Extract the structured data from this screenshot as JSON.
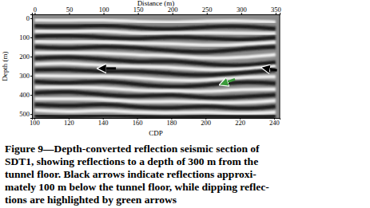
{
  "chart_data": {
    "type": "seismic",
    "xlabel": "Distance (m)",
    "ylabel": "Depth (m)",
    "x2label": "CDP",
    "xlim": [
      -4,
      356
    ],
    "xticks": [
      0,
      50,
      100,
      150,
      200,
      250,
      300,
      350
    ],
    "x2lim": [
      98.6,
      243.3
    ],
    "x2ticks": [
      100,
      120,
      140,
      160,
      180,
      200,
      220,
      240
    ],
    "ylim": [
      -20,
      520
    ],
    "yticks": [
      0,
      100,
      200,
      300,
      400,
      500
    ],
    "x": [
      0,
      50,
      100,
      150,
      200,
      250,
      300,
      350
    ],
    "series": [
      {
        "color": "#f2f2f2",
        "values": [
          10,
          12,
          8,
          18,
          22,
          15,
          12,
          20
        ]
      },
      {
        "color": "#1a1a1a",
        "values": [
          40,
          45,
          35,
          50,
          60,
          45,
          40,
          55
        ]
      },
      {
        "color": "#f2f2f2",
        "values": [
          68,
          70,
          65,
          80,
          78,
          75,
          78,
          80
        ]
      },
      {
        "color": "#1a1a1a",
        "values": [
          95,
          90,
          100,
          110,
          95,
          105,
          115,
          100
        ]
      },
      {
        "color": "#f2f2f2",
        "values": [
          122,
          125,
          122,
          132,
          132,
          142,
          138,
          125
        ]
      },
      {
        "color": "#1a1a1a",
        "values": [
          150,
          160,
          145,
          155,
          170,
          180,
          160,
          150
        ]
      },
      {
        "color": "#f2f2f2",
        "values": [
          180,
          180,
          180,
          192,
          195,
          210,
          205,
          190
        ]
      },
      {
        "color": "#1a1a1a",
        "values": [
          210,
          200,
          215,
          230,
          220,
          240,
          250,
          230
        ]
      },
      {
        "color": "#f2f2f2",
        "values": [
          240,
          232,
          248,
          252,
          255,
          270,
          268,
          250
        ]
      },
      {
        "color": "#1a1a1a",
        "values": [
          270,
          265,
          280,
          275,
          290,
          300,
          285,
          270
        ]
      },
      {
        "color": "#f2f2f2",
        "values": [
          300,
          302,
          302,
          310,
          325,
          325,
          308,
          305
        ]
      },
      {
        "color": "#1a1a1a",
        "values": [
          330,
          340,
          325,
          345,
          360,
          350,
          330,
          340
        ]
      },
      {
        "color": "#f2f2f2",
        "values": [
          360,
          360,
          362,
          378,
          378,
          385,
          370,
          370
        ]
      },
      {
        "color": "#1a1a1a",
        "values": [
          390,
          380,
          400,
          410,
          395,
          420,
          410,
          400
        ]
      },
      {
        "color": "#f2f2f2",
        "values": [
          420,
          420,
          422,
          438,
          432,
          438,
          442,
          430
        ]
      },
      {
        "color": "#1a1a1a",
        "values": [
          450,
          460,
          445,
          465,
          470,
          455,
          475,
          460
        ]
      },
      {
        "color": "#f2f2f2",
        "values": [
          480,
          490,
          478,
          492,
          495,
          488,
          500,
          490
        ]
      },
      {
        "color": "#1a1a1a",
        "values": [
          508,
          515,
          505,
          512,
          518,
          510,
          515,
          512
        ]
      }
    ],
    "arrows": [
      {
        "color": "#000000",
        "from": [
          118,
          262
        ],
        "to": [
          96,
          262
        ]
      },
      {
        "color": "#000000",
        "from": [
          352,
          272
        ],
        "to": [
          334,
          260
        ]
      },
      {
        "color": "#3a9a3a",
        "from": [
          291,
          318
        ],
        "to": [
          273,
          342
        ]
      }
    ]
  },
  "caption": [
    "Figure 9—Depth-converted reflection seismic section of",
    "SDT1, showing reflections to a depth of 300 m from the",
    "tunnel floor. Black arrows indicate reflections approxi-",
    "mately 100 m below the tunnel floor, while dipping reflec-",
    "tions are highlighted by green arrows"
  ]
}
